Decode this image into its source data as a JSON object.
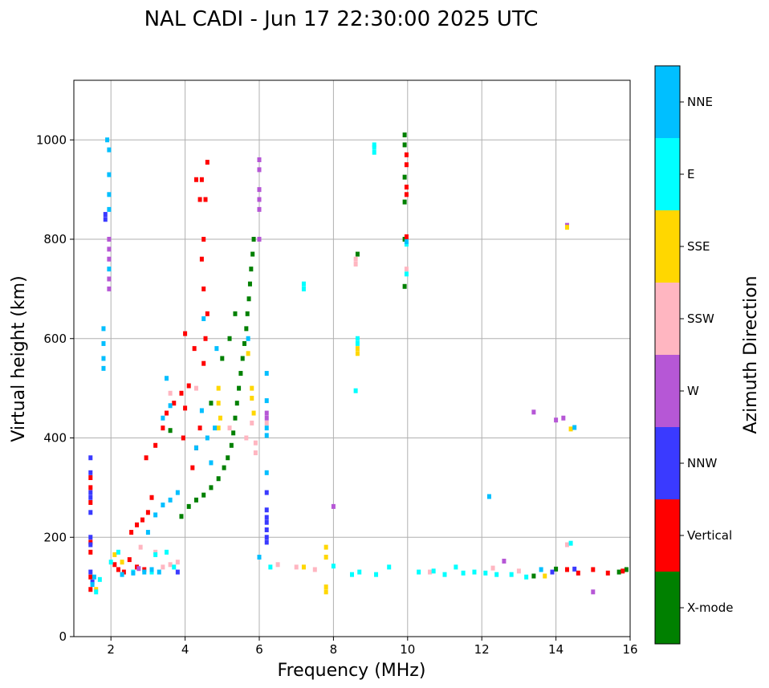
{
  "chart_data": {
    "type": "scatter",
    "title": "NAL CADI - Jun 17 22:30:00 2025 UTC",
    "xlabel": "Frequency (MHz)",
    "ylabel": "Virtual height (km)",
    "xlim": [
      1,
      16
    ],
    "ylim": [
      0,
      1120
    ],
    "xticks": [
      2,
      4,
      6,
      8,
      10,
      12,
      14,
      16
    ],
    "yticks": [
      0,
      200,
      400,
      600,
      800,
      1000
    ],
    "grid": true,
    "colorbar": {
      "label": "Azimuth Direction",
      "categories": [
        {
          "name": "X-mode",
          "color": "#008000"
        },
        {
          "name": "Vertical",
          "color": "#ff0000"
        },
        {
          "name": "NNW",
          "color": "#3a3aff"
        },
        {
          "name": "W",
          "color": "#b657d6"
        },
        {
          "name": "SSW",
          "color": "#ffb6c1"
        },
        {
          "name": "SSE",
          "color": "#ffd700"
        },
        {
          "name": "E",
          "color": "#00ffff"
        },
        {
          "name": "NNE",
          "color": "#00bfff"
        }
      ]
    },
    "series": [
      {
        "name": "X-mode",
        "points": [
          [
            3.9,
            242
          ],
          [
            4.1,
            262
          ],
          [
            4.3,
            275
          ],
          [
            4.5,
            285
          ],
          [
            4.7,
            300
          ],
          [
            4.9,
            318
          ],
          [
            5.05,
            340
          ],
          [
            5.15,
            360
          ],
          [
            5.25,
            385
          ],
          [
            5.3,
            410
          ],
          [
            5.35,
            440
          ],
          [
            5.4,
            470
          ],
          [
            5.45,
            500
          ],
          [
            5.5,
            530
          ],
          [
            5.55,
            560
          ],
          [
            5.6,
            590
          ],
          [
            5.65,
            620
          ],
          [
            5.68,
            650
          ],
          [
            5.72,
            680
          ],
          [
            5.75,
            710
          ],
          [
            5.78,
            740
          ],
          [
            5.82,
            770
          ],
          [
            5.85,
            800
          ],
          [
            5.2,
            600
          ],
          [
            5.0,
            560
          ],
          [
            5.35,
            650
          ],
          [
            9.92,
            1010
          ],
          [
            9.92,
            990
          ],
          [
            9.92,
            925
          ],
          [
            9.92,
            875
          ],
          [
            9.92,
            800
          ],
          [
            9.92,
            705
          ],
          [
            8.65,
            770
          ],
          [
            13.4,
            122
          ],
          [
            14.0,
            136
          ],
          [
            15.7,
            130
          ],
          [
            15.9,
            135
          ],
          [
            3.6,
            415
          ],
          [
            4.7,
            470
          ]
        ]
      },
      {
        "name": "Vertical",
        "points": [
          [
            1.45,
            320
          ],
          [
            1.45,
            300
          ],
          [
            1.45,
            270
          ],
          [
            1.45,
            190
          ],
          [
            1.45,
            170
          ],
          [
            1.45,
            120
          ],
          [
            1.45,
            95
          ],
          [
            2.1,
            145
          ],
          [
            2.2,
            135
          ],
          [
            2.35,
            130
          ],
          [
            2.5,
            155
          ],
          [
            2.7,
            140
          ],
          [
            2.9,
            135
          ],
          [
            2.55,
            210
          ],
          [
            2.7,
            225
          ],
          [
            2.85,
            235
          ],
          [
            3.0,
            250
          ],
          [
            3.1,
            280
          ],
          [
            2.95,
            360
          ],
          [
            3.2,
            385
          ],
          [
            3.4,
            420
          ],
          [
            3.5,
            450
          ],
          [
            3.7,
            470
          ],
          [
            3.9,
            490
          ],
          [
            4.0,
            460
          ],
          [
            4.1,
            505
          ],
          [
            3.95,
            400
          ],
          [
            4.2,
            340
          ],
          [
            4.3,
            380
          ],
          [
            4.4,
            420
          ],
          [
            4.5,
            550
          ],
          [
            4.55,
            600
          ],
          [
            4.6,
            650
          ],
          [
            4.5,
            700
          ],
          [
            4.45,
            760
          ],
          [
            4.5,
            800
          ],
          [
            4.45,
            920
          ],
          [
            4.6,
            955
          ],
          [
            4.3,
            920
          ],
          [
            4.55,
            880
          ],
          [
            4.4,
            880
          ],
          [
            9.97,
            970
          ],
          [
            9.97,
            950
          ],
          [
            9.97,
            905
          ],
          [
            9.97,
            890
          ],
          [
            9.97,
            805
          ],
          [
            14.3,
            135
          ],
          [
            14.6,
            128
          ],
          [
            15.0,
            135
          ],
          [
            15.4,
            128
          ],
          [
            15.8,
            132
          ],
          [
            4.0,
            610
          ],
          [
            4.25,
            580
          ]
        ]
      },
      {
        "name": "NNW",
        "points": [
          [
            1.45,
            360
          ],
          [
            1.45,
            330
          ],
          [
            1.45,
            290
          ],
          [
            1.45,
            280
          ],
          [
            1.45,
            250
          ],
          [
            1.45,
            200
          ],
          [
            1.45,
            185
          ],
          [
            1.45,
            130
          ],
          [
            1.5,
            110
          ],
          [
            1.85,
            850
          ],
          [
            1.85,
            840
          ],
          [
            6.2,
            255
          ],
          [
            6.2,
            240
          ],
          [
            6.2,
            230
          ],
          [
            6.2,
            215
          ],
          [
            6.2,
            200
          ],
          [
            6.2,
            190
          ],
          [
            6.2,
            290
          ],
          [
            3.8,
            130
          ],
          [
            13.9,
            130
          ],
          [
            14.5,
            136
          ]
        ]
      },
      {
        "name": "W",
        "points": [
          [
            1.95,
            800
          ],
          [
            1.95,
            780
          ],
          [
            1.95,
            760
          ],
          [
            1.95,
            700
          ],
          [
            1.95,
            720
          ],
          [
            6.0,
            960
          ],
          [
            6.0,
            940
          ],
          [
            6.0,
            900
          ],
          [
            6.0,
            880
          ],
          [
            6.0,
            860
          ],
          [
            6.0,
            800
          ],
          [
            6.2,
            440
          ],
          [
            6.2,
            450
          ],
          [
            8.0,
            262
          ],
          [
            14.0,
            436
          ],
          [
            14.2,
            440
          ],
          [
            13.4,
            452
          ],
          [
            12.6,
            152
          ],
          [
            14.3,
            828
          ],
          [
            15.0,
            90
          ],
          [
            2.75,
            137
          ]
        ]
      },
      {
        "name": "SSW",
        "points": [
          [
            2.8,
            180
          ],
          [
            3.2,
            170
          ],
          [
            3.4,
            140
          ],
          [
            3.6,
            145
          ],
          [
            3.8,
            150
          ],
          [
            3.6,
            490
          ],
          [
            4.3,
            500
          ],
          [
            5.2,
            420
          ],
          [
            5.65,
            400
          ],
          [
            5.9,
            390
          ],
          [
            5.8,
            430
          ],
          [
            5.9,
            370
          ],
          [
            6.2,
            430
          ],
          [
            6.5,
            145
          ],
          [
            7.0,
            140
          ],
          [
            7.5,
            135
          ],
          [
            8.6,
            760
          ],
          [
            8.6,
            750
          ],
          [
            9.97,
            740
          ],
          [
            12.3,
            138
          ],
          [
            13.0,
            132
          ],
          [
            14.3,
            185
          ],
          [
            10.6,
            130
          ]
        ]
      },
      {
        "name": "SSE",
        "points": [
          [
            1.6,
            95
          ],
          [
            2.1,
            165
          ],
          [
            2.3,
            150
          ],
          [
            4.9,
            420
          ],
          [
            4.9,
            500
          ],
          [
            4.9,
            470
          ],
          [
            4.95,
            440
          ],
          [
            5.8,
            480
          ],
          [
            5.8,
            500
          ],
          [
            5.85,
            450
          ],
          [
            5.7,
            570
          ],
          [
            7.8,
            180
          ],
          [
            7.8,
            160
          ],
          [
            7.8,
            100
          ],
          [
            7.8,
            90
          ],
          [
            8.65,
            580
          ],
          [
            8.65,
            570
          ],
          [
            13.7,
            122
          ],
          [
            14.4,
            418
          ],
          [
            14.3,
            824
          ],
          [
            7.2,
            140
          ]
        ]
      },
      {
        "name": "E",
        "points": [
          [
            1.6,
            90
          ],
          [
            1.7,
            115
          ],
          [
            2.0,
            150
          ],
          [
            2.2,
            170
          ],
          [
            3.2,
            165
          ],
          [
            3.5,
            170
          ],
          [
            3.7,
            140
          ],
          [
            6.3,
            140
          ],
          [
            7.2,
            700
          ],
          [
            7.2,
            710
          ],
          [
            8.0,
            142
          ],
          [
            8.5,
            125
          ],
          [
            8.6,
            495
          ],
          [
            8.7,
            130
          ],
          [
            9.1,
            975
          ],
          [
            9.1,
            985
          ],
          [
            9.1,
            990
          ],
          [
            9.15,
            125
          ],
          [
            9.5,
            140
          ],
          [
            9.97,
            790
          ],
          [
            9.97,
            730
          ],
          [
            10.3,
            130
          ],
          [
            10.7,
            132
          ],
          [
            11.0,
            125
          ],
          [
            11.3,
            140
          ],
          [
            11.5,
            128
          ],
          [
            11.8,
            130
          ],
          [
            12.1,
            128
          ],
          [
            12.4,
            125
          ],
          [
            12.8,
            125
          ],
          [
            13.2,
            120
          ],
          [
            8.65,
            590
          ],
          [
            8.65,
            600
          ],
          [
            14.4,
            188
          ],
          [
            3.1,
            130
          ],
          [
            2.6,
            130
          ]
        ]
      },
      {
        "name": "NNE",
        "points": [
          [
            1.5,
            105
          ],
          [
            1.55,
            120
          ],
          [
            1.8,
            540
          ],
          [
            1.8,
            560
          ],
          [
            1.8,
            590
          ],
          [
            1.8,
            620
          ],
          [
            1.9,
            1000
          ],
          [
            1.95,
            980
          ],
          [
            1.95,
            930
          ],
          [
            1.95,
            890
          ],
          [
            1.95,
            860
          ],
          [
            1.95,
            740
          ],
          [
            2.3,
            125
          ],
          [
            2.6,
            128
          ],
          [
            2.9,
            130
          ],
          [
            3.1,
            135
          ],
          [
            3.3,
            130
          ],
          [
            3.0,
            210
          ],
          [
            3.2,
            245
          ],
          [
            3.4,
            265
          ],
          [
            3.6,
            275
          ],
          [
            3.8,
            290
          ],
          [
            3.4,
            440
          ],
          [
            3.6,
            465
          ],
          [
            3.5,
            520
          ],
          [
            4.3,
            380
          ],
          [
            4.45,
            455
          ],
          [
            4.6,
            400
          ],
          [
            4.7,
            350
          ],
          [
            4.8,
            420
          ],
          [
            4.85,
            580
          ],
          [
            4.5,
            640
          ],
          [
            5.7,
            600
          ],
          [
            6.2,
            530
          ],
          [
            6.2,
            475
          ],
          [
            6.2,
            420
          ],
          [
            6.2,
            405
          ],
          [
            6.2,
            330
          ],
          [
            6.0,
            160
          ],
          [
            12.2,
            282
          ],
          [
            14.5,
            421
          ],
          [
            13.6,
            135
          ],
          [
            9.97,
            795
          ]
        ]
      }
    ]
  }
}
